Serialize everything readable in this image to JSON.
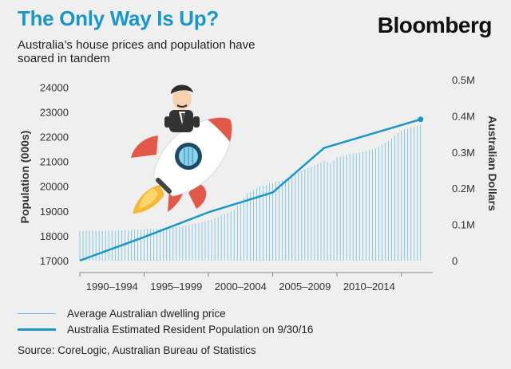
{
  "header": {
    "title": "The Only Way Is Up?",
    "brand": "Bloomberg",
    "subtitle": "Australia’s house prices and population have soared in tandem"
  },
  "legend": {
    "price": "Average Australian dwelling price",
    "population": "Australia Estimated Resident Population on 9/30/16"
  },
  "source": "Source: CoreLogic, Australian Bureau of Statistics",
  "colors": {
    "accent": "#1a96c7",
    "price_bars": "#6bbfe0",
    "background": "#efefef"
  },
  "illustration": "businessman-riding-rocket",
  "chart_data": {
    "type": "bar",
    "title": "The Only Way Is Up?",
    "left_axis": {
      "label": "Population (000s)",
      "ticks": [
        "17000",
        "18000",
        "19000",
        "20000",
        "21000",
        "22000",
        "23000",
        "24000"
      ],
      "min": 17000,
      "max": 24300
    },
    "right_axis": {
      "label": "Australian Dollars",
      "ticks": [
        "0",
        "0.1M",
        "0.2M",
        "0.3M",
        "0.4M",
        "0.5M"
      ],
      "min": 0,
      "max": 0.5
    },
    "x_axis": {
      "labels": [
        "1990–1994",
        "1995–1999",
        "2000–2004",
        "2005–2009",
        "2010–2014"
      ],
      "min": 1990,
      "max": 2016.7
    },
    "series": [
      {
        "name": "Average Australian dwelling price",
        "kind": "monthly-bars",
        "x": [
          1990,
          1992,
          1994,
          1996,
          1998,
          2000,
          2002,
          2003,
          2004,
          2006,
          2007,
          2008,
          2009,
          2009.5,
          2010,
          2011,
          2012,
          2013,
          2014,
          2015,
          2016,
          2016.5
        ],
        "values": [
          0.082,
          0.082,
          0.085,
          0.088,
          0.095,
          0.11,
          0.14,
          0.185,
          0.205,
          0.225,
          0.245,
          0.26,
          0.275,
          0.27,
          0.285,
          0.295,
          0.3,
          0.31,
          0.33,
          0.36,
          0.37,
          0.375
        ]
      },
      {
        "name": "Australia Estimated Resident Population on 9/30/16",
        "kind": "line",
        "x": [
          1990,
          1995,
          2000,
          2005,
          2009,
          2016.5
        ],
        "values": [
          17000,
          17950,
          18950,
          19750,
          21550,
          22700
        ]
      }
    ]
  }
}
